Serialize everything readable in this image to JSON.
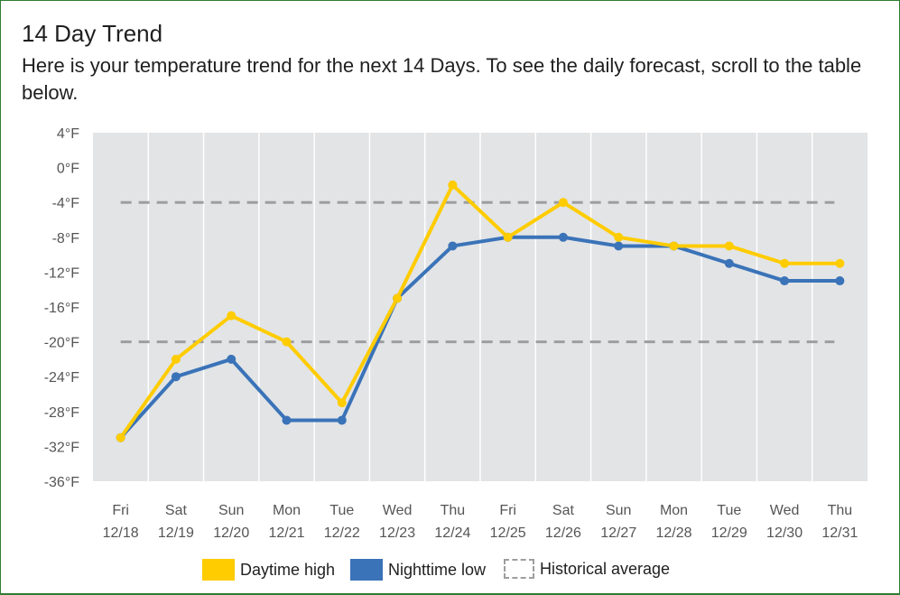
{
  "header": {
    "title": "14 Day Trend",
    "subtitle": "Here is your temperature trend for the next 14 Days. To see the daily forecast, scroll to the table below."
  },
  "legend": {
    "high_label": "Daytime high",
    "low_label": "Nighttime low",
    "avg_label": "Historical average"
  },
  "colors": {
    "high": "#ffcc00",
    "low": "#3a73b8",
    "avg": "#9e9e9e",
    "plot_bg": "#e2e4e6"
  },
  "chart_data": {
    "type": "line",
    "title": "14 Day Trend",
    "xlabel": "",
    "ylabel": "",
    "ylim": [
      -36,
      4
    ],
    "y_ticks": [
      4,
      0,
      -4,
      -8,
      -12,
      -16,
      -20,
      -24,
      -28,
      -32,
      -36
    ],
    "y_tick_labels": [
      "4°F",
      "0°F",
      "-4°F",
      "-8°F",
      "-12°F",
      "-16°F",
      "-20°F",
      "-24°F",
      "-28°F",
      "-32°F",
      "-36°F"
    ],
    "categories": [
      {
        "day": "Fri",
        "date": "12/18"
      },
      {
        "day": "Sat",
        "date": "12/19"
      },
      {
        "day": "Sun",
        "date": "12/20"
      },
      {
        "day": "Mon",
        "date": "12/21"
      },
      {
        "day": "Tue",
        "date": "12/22"
      },
      {
        "day": "Wed",
        "date": "12/23"
      },
      {
        "day": "Thu",
        "date": "12/24"
      },
      {
        "day": "Fri",
        "date": "12/25"
      },
      {
        "day": "Sat",
        "date": "12/26"
      },
      {
        "day": "Sun",
        "date": "12/27"
      },
      {
        "day": "Mon",
        "date": "12/28"
      },
      {
        "day": "Tue",
        "date": "12/29"
      },
      {
        "day": "Wed",
        "date": "12/30"
      },
      {
        "day": "Thu",
        "date": "12/31"
      }
    ],
    "series": [
      {
        "name": "Daytime high",
        "values": [
          -31,
          -22,
          -17,
          -20,
          -27,
          -15,
          -2,
          -8,
          -4,
          -8,
          -9,
          -9,
          -11,
          -11
        ]
      },
      {
        "name": "Nighttime low",
        "values": [
          -31,
          -24,
          -22,
          -29,
          -29,
          -15,
          -9,
          -8,
          -8,
          -9,
          -9,
          -11,
          -13,
          -13
        ]
      }
    ],
    "historical_average": {
      "name": "Historical average",
      "upper": -4,
      "lower": -20
    },
    "grid": true,
    "legend_position": "bottom-center"
  }
}
